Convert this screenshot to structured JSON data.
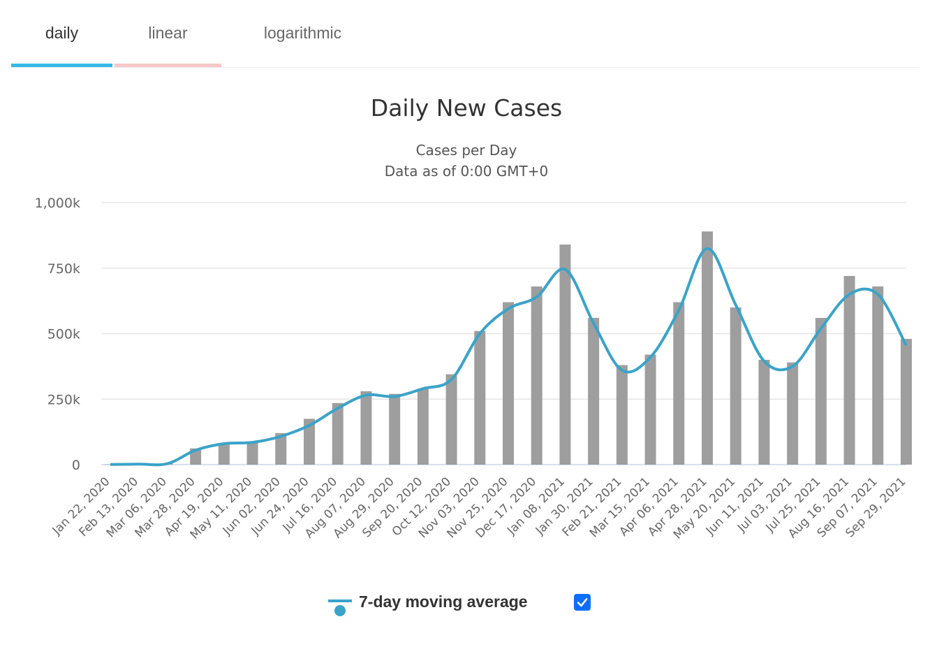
{
  "tabs": [
    {
      "label": "daily",
      "underline_color": "#36b9e8"
    },
    {
      "label": "linear",
      "underline_color": "#f7c8c8"
    },
    {
      "label": "logarithmic",
      "underline_color": "transparent"
    }
  ],
  "colors": {
    "bars": "#9e9e9e",
    "average_line": "#3aa3c9",
    "grid": "#e6e6e6",
    "axis_text": "#666666",
    "title_text": "#333333",
    "checkbox": "#0d6efd"
  },
  "legend": {
    "label": "7-day moving average",
    "checked": true,
    "icon": "line-with-dot-icon"
  },
  "chart_data": {
    "type": "bar",
    "title": "Daily New Cases",
    "subtitle_lines": [
      "Cases per Day",
      "Data as of 0:00 GMT+0"
    ],
    "xlabel": "",
    "ylabel": "",
    "ylim": [
      0,
      1000000
    ],
    "yticks": [
      0,
      250000,
      500000,
      750000,
      1000000
    ],
    "ytick_labels": [
      "0",
      "250k",
      "500k",
      "750k",
      "1,000k"
    ],
    "xtick_labels": [
      "Jan 22, 2020",
      "Feb 13, 2020",
      "Mar 06, 2020",
      "Mar 28, 2020",
      "Apr 19, 2020",
      "May 11, 2020",
      "Jun 02, 2020",
      "Jun 24, 2020",
      "Jul 16, 2020",
      "Aug 07, 2020",
      "Aug 29, 2020",
      "Sep 20, 2020",
      "Oct 12, 2020",
      "Nov 03, 2020",
      "Nov 25, 2020",
      "Dec 17, 2020",
      "Jan 08, 2021",
      "Jan 30, 2021",
      "Feb 21, 2021",
      "Mar 15, 2021",
      "Apr 06, 2021",
      "Apr 28, 2021",
      "May 20, 2021",
      "Jun 11, 2021",
      "Jul 03, 2021",
      "Jul 25, 2021",
      "Aug 16, 2021",
      "Sep 07, 2021",
      "Sep 29, 2021"
    ],
    "grid": true,
    "series": [
      {
        "name": "",
        "kind": "bar",
        "x": [
          "2020-01-22",
          "2020-02-13",
          "2020-03-06",
          "2020-03-28",
          "2020-04-19",
          "2020-05-11",
          "2020-06-02",
          "2020-06-24",
          "2020-07-16",
          "2020-08-07",
          "2020-08-29",
          "2020-09-20",
          "2020-10-12",
          "2020-11-03",
          "2020-11-25",
          "2020-12-17",
          "2021-01-08",
          "2021-01-30",
          "2021-02-21",
          "2021-03-15",
          "2021-04-06",
          "2021-04-28",
          "2021-05-20",
          "2021-06-11",
          "2021-07-03",
          "2021-07-25",
          "2021-08-16",
          "2021-09-07",
          "2021-09-29"
        ],
        "values": [
          600,
          2000,
          4000,
          62000,
          83000,
          88000,
          120000,
          175000,
          235000,
          280000,
          270000,
          290000,
          345000,
          510000,
          620000,
          680000,
          840000,
          560000,
          380000,
          420000,
          620000,
          890000,
          600000,
          400000,
          390000,
          560000,
          720000,
          680000,
          480000
        ]
      },
      {
        "name": "7-day moving average",
        "kind": "line",
        "x": [
          "2020-01-22",
          "2020-02-13",
          "2020-03-06",
          "2020-03-28",
          "2020-04-19",
          "2020-05-11",
          "2020-06-02",
          "2020-06-24",
          "2020-07-16",
          "2020-08-07",
          "2020-08-29",
          "2020-09-20",
          "2020-10-12",
          "2020-11-03",
          "2020-11-25",
          "2020-12-17",
          "2021-01-08",
          "2021-01-30",
          "2021-02-21",
          "2021-03-15",
          "2021-04-06",
          "2021-04-28",
          "2021-05-20",
          "2021-06-11",
          "2021-07-03",
          "2021-07-25",
          "2021-08-16",
          "2021-09-07",
          "2021-09-29"
        ],
        "values": [
          500,
          1800,
          3500,
          55000,
          80000,
          85000,
          108000,
          150000,
          215000,
          265000,
          260000,
          290000,
          325000,
          500000,
          595000,
          640000,
          745000,
          540000,
          360000,
          410000,
          590000,
          825000,
          610000,
          395000,
          375000,
          520000,
          650000,
          650000,
          455000
        ]
      }
    ]
  }
}
